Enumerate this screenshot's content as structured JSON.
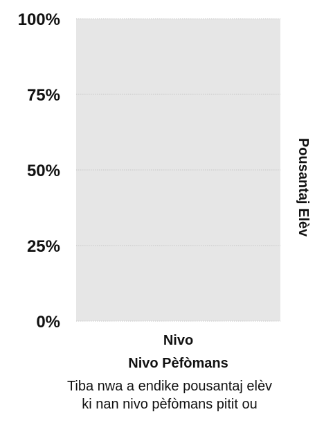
{
  "chart_data": {
    "type": "bar",
    "categories": [
      ""
    ],
    "values": [
      null
    ],
    "xlabel_lines": [
      "Nivo",
      "Nivo Pèfòmans"
    ],
    "ylabel": "Pousantaj Elèv",
    "ylim": [
      0,
      100
    ],
    "yticks": [
      {
        "value": 0,
        "label": "0%"
      },
      {
        "value": 25,
        "label": "25%"
      },
      {
        "value": 50,
        "label": "50%"
      },
      {
        "value": 75,
        "label": "75%"
      },
      {
        "value": 100,
        "label": "100%"
      }
    ],
    "grid": true,
    "plot_background": "#e6e6e6",
    "grid_color": "#c7c7c7"
  },
  "caption": {
    "lines": [
      "Tiba nwa a endike pousantaj elèv",
      "ki nan nivo pèfòmans pitit ou"
    ]
  }
}
